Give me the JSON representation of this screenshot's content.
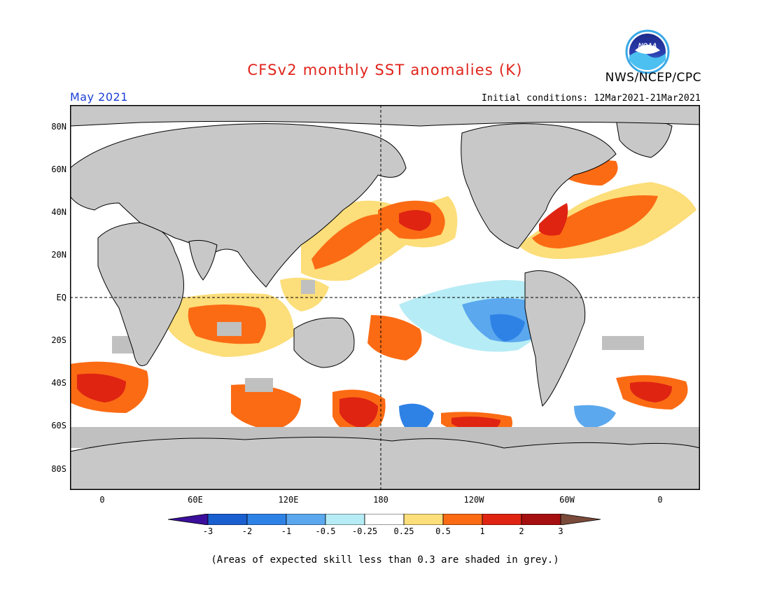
{
  "header": {
    "title": "CFSv2 monthly SST anomalies (K)",
    "agency": "NWS/NCEP/CPC",
    "valid_month": "May 2021",
    "initial_conditions": "Initial conditions: 12Mar2021-21Mar2021"
  },
  "logo": {
    "name": "noaa-logo",
    "text": "NOAA"
  },
  "map": {
    "lat_labels": [
      "80N",
      "60N",
      "40N",
      "20N",
      "EQ",
      "20S",
      "40S",
      "60S",
      "80S"
    ],
    "lon_labels": [
      "0",
      "60E",
      "120E",
      "180",
      "120W",
      "60W",
      "0"
    ],
    "land_color": "#c8c8c8",
    "skill_mask_color": "#c0c0c0",
    "ocean_neutral_color": "#ffffff"
  },
  "colorbar": {
    "tick_labels": [
      "-3",
      "-2",
      "-1",
      "-0.5",
      "-0.25",
      "0.25",
      "0.5",
      "1",
      "2",
      "3"
    ],
    "colors": [
      "#3b0f9c",
      "#1a5fcf",
      "#2e82e6",
      "#5ba8ee",
      "#b6ecf5",
      "#ffffff",
      "#fcde7a",
      "#fb6b14",
      "#df2412",
      "#a50f0f",
      "#7a4a3a"
    ]
  },
  "footnote": "(Areas of expected skill less than 0.3 are shaded in grey.)"
}
